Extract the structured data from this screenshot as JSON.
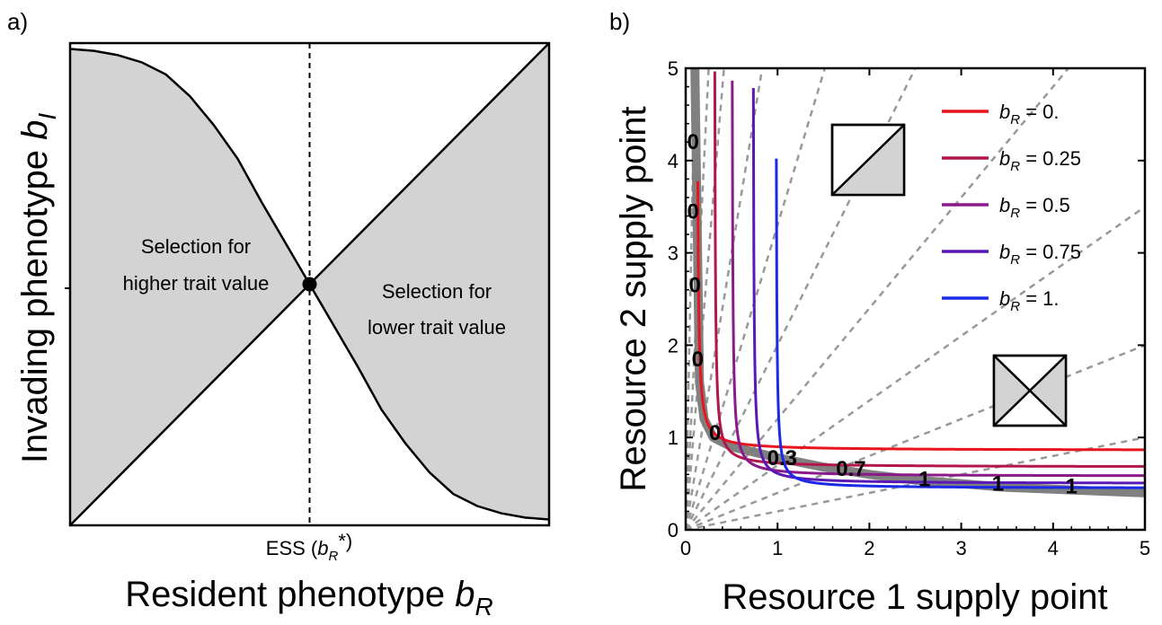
{
  "colors": {
    "shade": "#d3d3d3",
    "axis": "#000000",
    "dashed_ray": "#999999",
    "envelope": "#808080",
    "panel_b_box_fill": "#d3d3d3"
  },
  "panel_a": {
    "label": "a)",
    "x_title": "Resident phenotype ",
    "x_title_var": "b",
    "x_title_sub": "R",
    "y_title": "Invading phenotype ",
    "y_title_var": "b",
    "y_title_sub": "I",
    "ess_label_prefix": "ESS (",
    "ess_label_var": "b",
    "ess_label_sub": "R",
    "ess_label_suffix": "*)",
    "left_region": [
      "Selection for",
      "higher trait value"
    ],
    "right_region": [
      "Selection for",
      "lower trait value"
    ]
  },
  "panel_b": {
    "label": "b)",
    "x_title": "Resource 1 supply point",
    "y_title": "Resource 2 supply point"
  },
  "chart_data": [
    {
      "type": "area",
      "panel": "a",
      "x_range": [
        0,
        1
      ],
      "y_range": [
        0,
        1
      ],
      "ess": 0.5,
      "diagonal": {
        "x": [
          0,
          1
        ],
        "y": [
          0,
          1
        ]
      },
      "best_response_curve": {
        "x": [
          0,
          0.05,
          0.1,
          0.15,
          0.2,
          0.25,
          0.3,
          0.35,
          0.4,
          0.45,
          0.5,
          0.55,
          0.6,
          0.65,
          0.7,
          0.75,
          0.8,
          0.85,
          0.9,
          0.95,
          1
        ],
        "y": [
          0.988,
          0.984,
          0.975,
          0.96,
          0.935,
          0.89,
          0.83,
          0.76,
          0.67,
          0.585,
          0.5,
          0.415,
          0.33,
          0.24,
          0.17,
          0.11,
          0.065,
          0.04,
          0.025,
          0.016,
          0.012
        ]
      },
      "shaded_regions": [
        "between curve and diagonal"
      ],
      "xtick_label": "ESS",
      "regions": [
        "Selection for higher trait value",
        "Selection for lower trait value"
      ]
    },
    {
      "type": "line",
      "panel": "b",
      "xlim": [
        0,
        5
      ],
      "ylim": [
        0,
        5
      ],
      "xticks": [
        "0",
        "1",
        "2",
        "3",
        "4",
        "5"
      ],
      "yticks": [
        "0",
        "1",
        "2",
        "3",
        "4",
        "5"
      ],
      "legend_position": "top-right",
      "series": [
        {
          "name": "0.",
          "color": "#e8141e",
          "x0": 0.12,
          "k": 0.035,
          "floor": 0.86
        },
        {
          "name": "0.25",
          "color": "#b3164e",
          "x0": 0.31,
          "k": 0.03,
          "floor": 0.68
        },
        {
          "name": "0.5",
          "color": "#8a1a8a",
          "x0": 0.5,
          "k": 0.03,
          "floor": 0.58
        },
        {
          "name": "0.75",
          "color": "#5a18b5",
          "x0": 0.73,
          "k": 0.03,
          "floor": 0.5
        },
        {
          "name": "1.",
          "color": "#1a2ae6",
          "x0": 0.98,
          "k": 0.025,
          "floor": 0.45
        }
      ],
      "legend_var": "b",
      "legend_sub": "R",
      "legend_eq": " = ",
      "envelope": {
        "color": "#808080",
        "x": [
          0.1,
          0.15,
          0.2,
          0.3,
          0.5,
          0.75,
          1,
          1.5,
          2,
          2.5,
          3,
          3.5,
          4,
          4.5,
          5
        ],
        "y": [
          5,
          1.6,
          1.2,
          1.0,
          0.9,
          0.84,
          0.78,
          0.68,
          0.6,
          0.54,
          0.5,
          0.46,
          0.44,
          0.42,
          0.4
        ]
      },
      "dashed_rays_slopes": [
        50,
        20,
        12,
        6,
        3.3,
        2,
        1.2,
        0.7,
        0.4,
        0.2
      ],
      "curve_labels": [
        {
          "text": "0",
          "x": 0.08,
          "y": 4.2
        },
        {
          "text": "0",
          "x": 0.08,
          "y": 3.45
        },
        {
          "text": "0",
          "x": 0.1,
          "y": 2.65
        },
        {
          "text": "0",
          "x": 0.13,
          "y": 1.85
        },
        {
          "text": "0",
          "x": 0.32,
          "y": 1.05
        },
        {
          "text": "0.3",
          "x": 1.05,
          "y": 0.78
        },
        {
          "text": "0.7",
          "x": 1.8,
          "y": 0.66
        },
        {
          "text": "1",
          "x": 2.6,
          "y": 0.55
        },
        {
          "text": "1",
          "x": 3.4,
          "y": 0.5
        },
        {
          "text": "1",
          "x": 4.2,
          "y": 0.47
        }
      ]
    }
  ]
}
